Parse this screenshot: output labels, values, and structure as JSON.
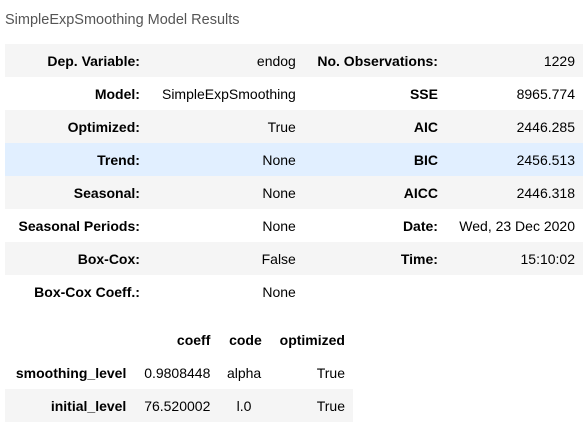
{
  "caption": "SimpleExpSmoothing Model Results",
  "summary": {
    "rows": [
      {
        "l1": "Dep. Variable:",
        "v1": "endog",
        "l2": "No. Observations:",
        "v2": "1229"
      },
      {
        "l1": "Model:",
        "v1": "SimpleExpSmoothing",
        "l2": "SSE",
        "v2": "8965.774"
      },
      {
        "l1": "Optimized:",
        "v1": "True",
        "l2": "AIC",
        "v2": "2446.285"
      },
      {
        "l1": "Trend:",
        "v1": "None",
        "l2": "BIC",
        "v2": "2456.513"
      },
      {
        "l1": "Seasonal:",
        "v1": "None",
        "l2": "AICC",
        "v2": "2446.318"
      },
      {
        "l1": "Seasonal Periods:",
        "v1": "None",
        "l2": "Date:",
        "v2": "Wed, 23 Dec 2020"
      },
      {
        "l1": "Box-Cox:",
        "v1": "False",
        "l2": "Time:",
        "v2": "15:10:02"
      },
      {
        "l1": "Box-Cox Coeff.:",
        "v1": "None",
        "l2": "",
        "v2": ""
      }
    ]
  },
  "params": {
    "headers": [
      "",
      "coeff",
      "code",
      "optimized"
    ],
    "rows": [
      {
        "name": "smoothing_level",
        "coeff": "0.9808448",
        "code": "alpha",
        "optimized": "True"
      },
      {
        "name": "initial_level",
        "coeff": "76.520002",
        "code": "l.0",
        "optimized": "True"
      }
    ]
  }
}
